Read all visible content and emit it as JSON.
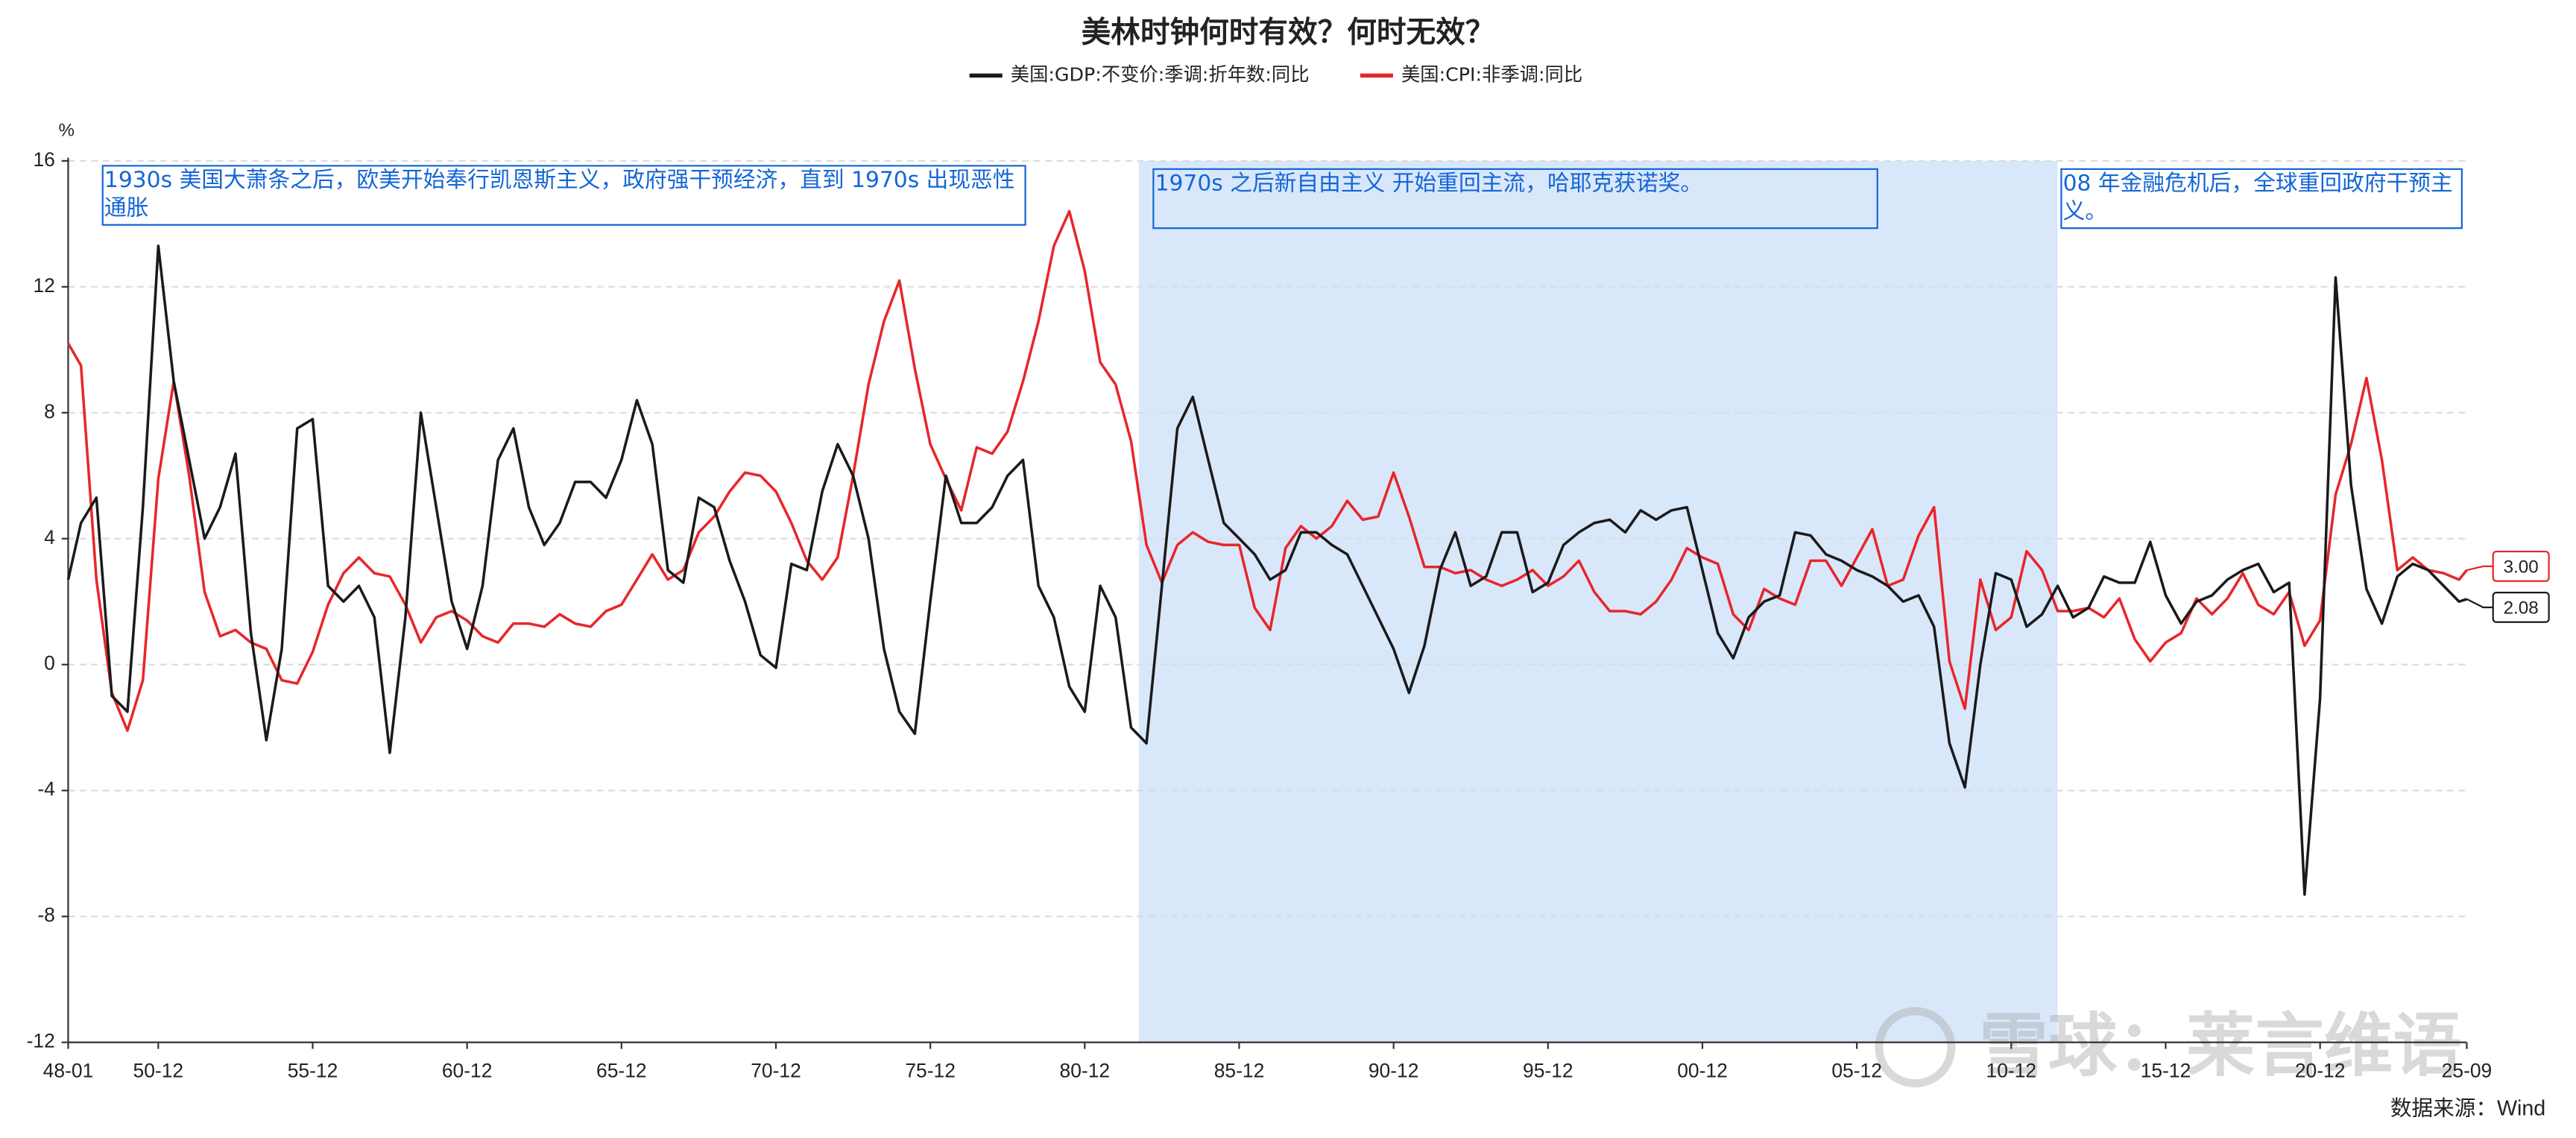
{
  "chart_data": {
    "type": "line",
    "title": "美林时钟何时有效？何时无效？",
    "y_label": "%",
    "source": "数据来源：Wind",
    "watermark": "雪球：莱言维语",
    "x": [
      "48-01",
      "48-06",
      "48-12",
      "49-06",
      "49-12",
      "50-06",
      "50-12",
      "51-06",
      "51-12",
      "52-06",
      "52-12",
      "53-06",
      "53-12",
      "54-06",
      "54-12",
      "55-06",
      "55-12",
      "56-06",
      "56-12",
      "57-06",
      "57-12",
      "58-06",
      "58-12",
      "59-06",
      "59-12",
      "60-06",
      "60-12",
      "61-06",
      "61-12",
      "62-06",
      "62-12",
      "63-06",
      "63-12",
      "64-06",
      "64-12",
      "65-06",
      "65-12",
      "66-06",
      "66-12",
      "67-06",
      "67-12",
      "68-06",
      "68-12",
      "69-06",
      "69-12",
      "70-06",
      "70-12",
      "71-06",
      "71-12",
      "72-06",
      "72-12",
      "73-06",
      "73-12",
      "74-06",
      "74-12",
      "75-06",
      "75-12",
      "76-06",
      "76-12",
      "77-06",
      "77-12",
      "78-06",
      "78-12",
      "79-06",
      "79-12",
      "80-06",
      "80-12",
      "81-06",
      "81-12",
      "82-06",
      "82-12",
      "83-06",
      "83-12",
      "84-06",
      "84-12",
      "85-06",
      "85-12",
      "86-06",
      "86-12",
      "87-06",
      "87-12",
      "88-06",
      "88-12",
      "89-06",
      "89-12",
      "90-06",
      "90-12",
      "91-06",
      "91-12",
      "92-06",
      "92-12",
      "93-06",
      "93-12",
      "94-06",
      "94-12",
      "95-06",
      "95-12",
      "96-06",
      "96-12",
      "97-06",
      "97-12",
      "98-06",
      "98-12",
      "99-06",
      "99-12",
      "00-06",
      "00-12",
      "01-06",
      "01-12",
      "02-06",
      "02-12",
      "03-06",
      "03-12",
      "04-06",
      "04-12",
      "05-06",
      "05-12",
      "06-06",
      "06-12",
      "07-06",
      "07-12",
      "08-06",
      "08-12",
      "09-06",
      "09-12",
      "10-06",
      "10-12",
      "11-06",
      "11-12",
      "12-06",
      "12-12",
      "13-06",
      "13-12",
      "14-06",
      "14-12",
      "15-06",
      "15-12",
      "16-06",
      "16-12",
      "17-06",
      "17-12",
      "18-06",
      "18-12",
      "19-06",
      "19-12",
      "20-06",
      "20-12",
      "21-06",
      "21-12",
      "22-06",
      "22-12",
      "23-06",
      "23-12",
      "24-06",
      "24-12",
      "25-06",
      "25-09"
    ],
    "series": [
      {
        "name": "美国:GDP:不变价:季调:折年数:同比",
        "color": "#1a1a1a",
        "end_label": "2.08",
        "values": [
          2.7,
          4.5,
          5.3,
          -1.0,
          -1.5,
          5.0,
          13.3,
          9.0,
          6.5,
          4.0,
          5.0,
          6.7,
          1.0,
          -2.4,
          0.5,
          7.5,
          7.8,
          2.5,
          2.0,
          2.5,
          1.5,
          -2.8,
          1.5,
          8.0,
          5.0,
          2.0,
          0.5,
          2.5,
          6.5,
          7.5,
          5.0,
          3.8,
          4.5,
          5.8,
          5.8,
          5.3,
          6.5,
          8.4,
          7.0,
          3.0,
          2.6,
          5.3,
          5.0,
          3.3,
          2.0,
          0.3,
          -0.1,
          3.2,
          3.0,
          5.5,
          7.0,
          6.0,
          4.0,
          0.5,
          -1.5,
          -2.2,
          2.0,
          6.0,
          4.5,
          4.5,
          5.0,
          6.0,
          6.5,
          2.5,
          1.5,
          -0.7,
          -1.5,
          2.5,
          1.5,
          -2.0,
          -2.5,
          2.5,
          7.5,
          8.5,
          6.5,
          4.5,
          4.0,
          3.5,
          2.7,
          3.0,
          4.2,
          4.2,
          3.8,
          3.5,
          2.5,
          1.5,
          0.5,
          -0.9,
          0.6,
          3.0,
          4.2,
          2.5,
          2.8,
          4.2,
          4.2,
          2.3,
          2.6,
          3.8,
          4.2,
          4.5,
          4.6,
          4.2,
          4.9,
          4.6,
          4.9,
          5.0,
          3.0,
          1.0,
          0.2,
          1.5,
          2.0,
          2.2,
          4.2,
          4.1,
          3.5,
          3.3,
          3.0,
          2.8,
          2.5,
          2.0,
          2.2,
          1.2,
          -2.5,
          -3.9,
          0.0,
          2.9,
          2.7,
          1.2,
          1.6,
          2.5,
          1.5,
          1.8,
          2.8,
          2.6,
          2.6,
          3.9,
          2.2,
          1.3,
          2.0,
          2.2,
          2.7,
          3.0,
          3.2,
          2.3,
          2.6,
          -7.3,
          -1.1,
          12.3,
          5.7,
          2.4,
          1.3,
          2.8,
          3.2,
          3.0,
          2.5,
          2.0,
          2.08
        ]
      },
      {
        "name": "美国:CPI:非季调:同比",
        "color": "#e8262a",
        "end_label": "3.00",
        "values": [
          10.2,
          9.5,
          2.7,
          -0.9,
          -2.1,
          -0.5,
          5.9,
          9.0,
          6.0,
          2.3,
          0.9,
          1.1,
          0.7,
          0.5,
          -0.5,
          -0.6,
          0.4,
          1.9,
          2.9,
          3.4,
          2.9,
          2.8,
          1.9,
          0.7,
          1.5,
          1.7,
          1.4,
          0.9,
          0.7,
          1.3,
          1.3,
          1.2,
          1.6,
          1.3,
          1.2,
          1.7,
          1.9,
          2.7,
          3.5,
          2.7,
          3.0,
          4.2,
          4.7,
          5.5,
          6.1,
          6.0,
          5.5,
          4.5,
          3.3,
          2.7,
          3.4,
          6.0,
          8.9,
          10.9,
          12.2,
          9.4,
          7.0,
          5.9,
          4.9,
          6.9,
          6.7,
          7.4,
          9.0,
          10.9,
          13.3,
          14.4,
          12.5,
          9.6,
          8.9,
          7.1,
          3.8,
          2.6,
          3.8,
          4.2,
          3.9,
          3.8,
          3.8,
          1.8,
          1.1,
          3.7,
          4.4,
          4.0,
          4.4,
          5.2,
          4.6,
          4.7,
          6.1,
          4.7,
          3.1,
          3.1,
          2.9,
          3.0,
          2.7,
          2.5,
          2.7,
          3.0,
          2.5,
          2.8,
          3.3,
          2.3,
          1.7,
          1.7,
          1.6,
          2.0,
          2.7,
          3.7,
          3.4,
          3.2,
          1.6,
          1.1,
          2.4,
          2.1,
          1.9,
          3.3,
          3.3,
          2.5,
          3.4,
          4.3,
          2.5,
          2.7,
          4.1,
          5.0,
          0.1,
          -1.4,
          2.7,
          1.1,
          1.5,
          3.6,
          3.0,
          1.7,
          1.7,
          1.8,
          1.5,
          2.1,
          0.8,
          0.1,
          0.7,
          1.0,
          2.1,
          1.6,
          2.1,
          2.9,
          1.9,
          1.6,
          2.3,
          0.6,
          1.4,
          5.4,
          7.0,
          9.1,
          6.5,
          3.0,
          3.4,
          3.0,
          2.9,
          2.7,
          3.0
        ]
      }
    ],
    "xlim": [
      "48-01",
      "25-09"
    ],
    "xticks": [
      "48-01",
      "50-12",
      "55-12",
      "60-12",
      "65-12",
      "70-12",
      "75-12",
      "80-12",
      "85-12",
      "90-12",
      "95-12",
      "00-12",
      "05-12",
      "10-12",
      "15-12",
      "20-12",
      "25-09"
    ],
    "ylim": [
      -12,
      16
    ],
    "yticks": [
      -12,
      -8,
      -4,
      0,
      4,
      8,
      12,
      16
    ],
    "grid": true,
    "shaded": {
      "from": "82-09",
      "to": "12-06",
      "color": "#d9e7fb"
    },
    "annotations": [
      {
        "text": "1930s 美国大萧条之后，欧美开始奉行凯恩斯主义，政府强干预经济，直到 1970s 出现恶性通胀"
      },
      {
        "text": "1970s 之后新自由主义 开始重回主流，哈耶克获诺奖。"
      },
      {
        "text": "08 年金融危机后，全球重回政府干预主义。"
      }
    ]
  }
}
